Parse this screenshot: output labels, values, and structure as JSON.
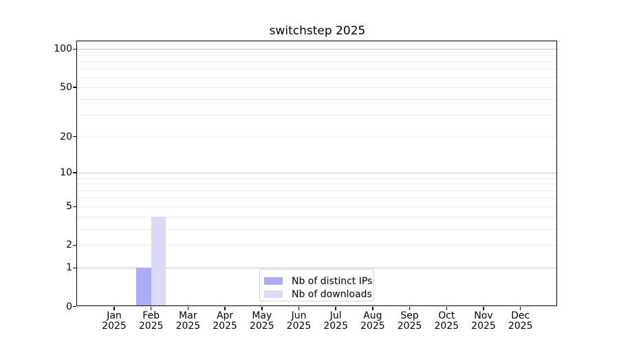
{
  "chart_data": {
    "type": "bar",
    "title": "switchstep 2025",
    "year_label": "2025",
    "categories": [
      "Jan",
      "Feb",
      "Mar",
      "Apr",
      "May",
      "Jun",
      "Jul",
      "Aug",
      "Sep",
      "Oct",
      "Nov",
      "Dec"
    ],
    "series": [
      {
        "name": "Nb of distinct IPs",
        "color": "#abacf3",
        "values": [
          0,
          1,
          0,
          0,
          0,
          0,
          0,
          0,
          0,
          0,
          0,
          0
        ]
      },
      {
        "name": "Nb of downloads",
        "color": "#dadaf8",
        "values": [
          0,
          4,
          0,
          0,
          0,
          0,
          0,
          0,
          0,
          0,
          0,
          0
        ]
      }
    ],
    "yscale": "log10(1+v)",
    "ylim": [
      0,
      116
    ],
    "yticks": [
      0,
      1,
      2,
      5,
      10,
      20,
      50,
      100
    ],
    "major_gridlines": [
      1,
      10,
      100
    ],
    "minor_gridlines": [
      2,
      3,
      4,
      5,
      6,
      7,
      8,
      9,
      20,
      30,
      40,
      50,
      60,
      70,
      80,
      90
    ],
    "grid": true,
    "legend_position": "bottom-center-inside",
    "colors": {
      "major_grid": "#c4c4c4",
      "minor_grid": "#eaeaea",
      "axis": "#000000",
      "text": "#000000",
      "legend_border": "#d2d2d2",
      "background": "#ffffff"
    }
  }
}
